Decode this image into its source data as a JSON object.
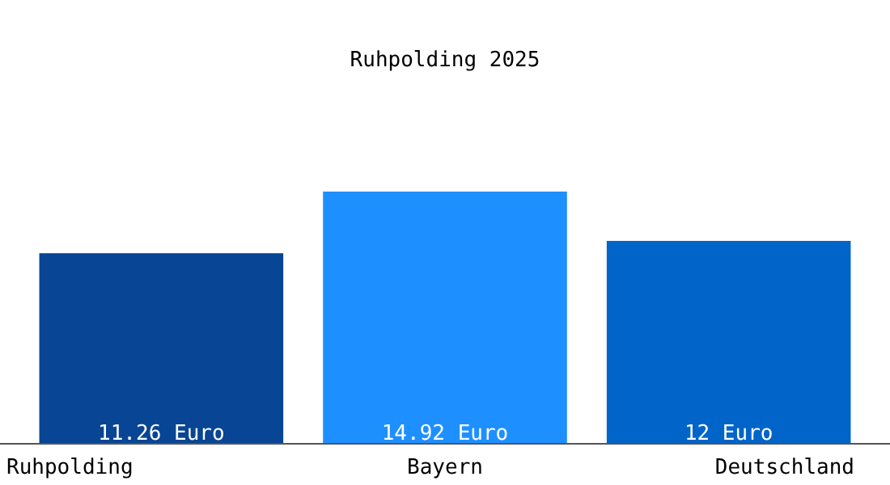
{
  "chart_data": {
    "type": "bar",
    "title": "Ruhpolding 2025",
    "categories": [
      "Ruhpolding",
      "Bayern",
      "Deutschland"
    ],
    "values": [
      11.26,
      14.92,
      12
    ],
    "colors": [
      "#084594",
      "#1e8fff",
      "#0064c8"
    ],
    "value_labels": [
      "11.26 Euro",
      "14.92 Euro",
      "12 Euro"
    ],
    "legend": false
  }
}
